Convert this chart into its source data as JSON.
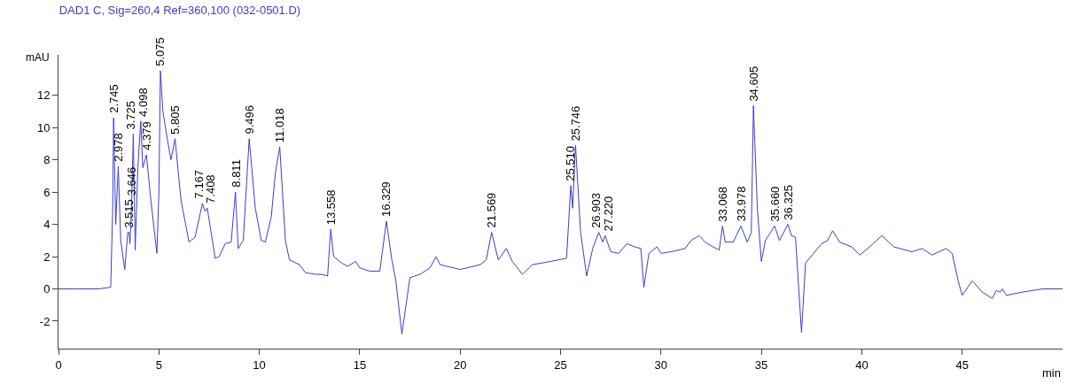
{
  "chart_data": {
    "type": "line",
    "title": "DAD1 C, Sig=260,4 Ref=360,100 (032-0501.D)",
    "xlabel": "min",
    "ylabel": "mAU",
    "xlim": [
      0,
      50
    ],
    "xticks": [
      0,
      5,
      10,
      15,
      20,
      25,
      30,
      35,
      40,
      45
    ],
    "ylim": [
      -3.7,
      14.5
    ],
    "yticks": [
      -2,
      0,
      2,
      4,
      6,
      8,
      10,
      12
    ],
    "marker": "none",
    "line_style": "solid",
    "series": [
      {
        "color": "#3c3cd0",
        "x": [
          0,
          1,
          2,
          2.6,
          2.7,
          2.745,
          2.85,
          2.978,
          3.1,
          3.3,
          3.45,
          3.515,
          3.56,
          3.646,
          3.725,
          3.82,
          3.95,
          4.098,
          4.2,
          4.379,
          4.6,
          4.9,
          5.0,
          5.075,
          5.2,
          5.35,
          5.6,
          5.805,
          6.1,
          6.5,
          6.8,
          7.167,
          7.3,
          7.408,
          7.6,
          7.8,
          8.0,
          8.3,
          8.6,
          8.811,
          8.95,
          9.2,
          9.496,
          9.8,
          10.1,
          10.3,
          10.6,
          10.8,
          11.018,
          11.3,
          11.5,
          12.0,
          12.3,
          12.8,
          13.1,
          13.4,
          13.558,
          13.7,
          14.1,
          14.4,
          14.8,
          15.0,
          15.5,
          16.0,
          16.329,
          16.6,
          16.8,
          17.1,
          17.5,
          18.0,
          18.5,
          18.8,
          19.0,
          20.0,
          21.0,
          21.3,
          21.569,
          21.9,
          22.3,
          22.6,
          23.1,
          23.6,
          24.5,
          25.3,
          25.51,
          25.6,
          25.746,
          26.0,
          26.3,
          26.6,
          26.903,
          27.1,
          27.22,
          27.5,
          27.9,
          28.3,
          28.7,
          29.0,
          29.15,
          29.4,
          29.8,
          30.0,
          30.5,
          31.2,
          31.5,
          31.9,
          32.2,
          32.6,
          32.9,
          33.068,
          33.2,
          33.6,
          33.978,
          34.3,
          34.5,
          34.605,
          34.8,
          35.0,
          35.2,
          35.66,
          35.9,
          36.325,
          36.5,
          36.7,
          37.0,
          37.2,
          37.6,
          38.0,
          38.3,
          38.55,
          38.9,
          39.5,
          39.9,
          40.3,
          41.0,
          41.6,
          42.5,
          43.0,
          43.5,
          44.2,
          44.5,
          44.8,
          45.0,
          45.5,
          46.0,
          46.5,
          46.7,
          46.9,
          47.0,
          47.2,
          48.0,
          49.0,
          50
        ],
        "values": [
          0,
          0,
          0,
          0.1,
          5,
          10.6,
          4,
          7.6,
          3,
          1.2,
          3.5,
          3.5,
          2.8,
          5.5,
          9.6,
          2.4,
          7.5,
          10.4,
          7.5,
          8.3,
          5.5,
          2.2,
          6,
          13.5,
          11,
          9.8,
          8,
          9.3,
          5.5,
          2.9,
          3.2,
          5.3,
          4.8,
          5,
          3.5,
          1.9,
          2,
          2.8,
          2.9,
          6,
          2.5,
          3,
          9.3,
          5,
          3,
          2.9,
          4.5,
          7.2,
          8.8,
          3,
          1.8,
          1.5,
          1,
          0.9,
          0.9,
          0.8,
          3.7,
          2,
          1.6,
          1.4,
          1.7,
          1.3,
          1.1,
          1.1,
          4.2,
          1.8,
          0.5,
          -2.8,
          0.7,
          0.9,
          1.3,
          2,
          1.5,
          1.2,
          1.5,
          1.8,
          3.5,
          1.8,
          2.5,
          1.7,
          0.9,
          1.5,
          1.7,
          1.9,
          6.4,
          5,
          8.9,
          3.5,
          0.8,
          2.5,
          3.5,
          2.9,
          3.3,
          2.3,
          2.2,
          2.8,
          2.6,
          2.5,
          0.1,
          2.2,
          2.6,
          2.2,
          2.3,
          2.5,
          3,
          3.3,
          2.9,
          2.6,
          2.4,
          3.9,
          2.9,
          2.9,
          3.9,
          2.9,
          3.5,
          11.35,
          5,
          1.7,
          3,
          3.9,
          3,
          4,
          3.3,
          3.2,
          -2.7,
          1.6,
          2.2,
          2.8,
          3,
          3.6,
          2.9,
          2.6,
          2.1,
          2.5,
          3.3,
          2.6,
          2.3,
          2.5,
          2.1,
          2.5,
          2.2,
          0.5,
          -0.4,
          0.5,
          -0.2,
          -0.6,
          -0.1,
          -0.2,
          0,
          -0.4,
          -0.2,
          0,
          0
        ]
      }
    ],
    "annotations": [
      {
        "text": "2.745",
        "x": 2.745,
        "y": 10.6
      },
      {
        "text": "2.978",
        "x": 2.978,
        "y": 7.6
      },
      {
        "text": "3.515",
        "x": 3.515,
        "y": 3.5
      },
      {
        "text": "3.646",
        "x": 3.646,
        "y": 5.5
      },
      {
        "text": "3.725",
        "x": 3.725,
        "y": 9.6
      },
      {
        "text": "4.098",
        "x": 4.098,
        "y": 10.4
      },
      {
        "text": "4.379",
        "x": 4.379,
        "y": 8.3
      },
      {
        "text": "5.075",
        "x": 5.075,
        "y": 13.5
      },
      {
        "text": "5.805",
        "x": 5.805,
        "y": 9.3
      },
      {
        "text": "7.167",
        "x": 7.167,
        "y": 5.3
      },
      {
        "text": "7.408",
        "x": 7.408,
        "y": 5
      },
      {
        "text": "8.811",
        "x": 8.811,
        "y": 6
      },
      {
        "text": "9.496",
        "x": 9.496,
        "y": 9.3
      },
      {
        "text": "11.018",
        "x": 11.018,
        "y": 8.8
      },
      {
        "text": "13.558",
        "x": 13.558,
        "y": 3.7
      },
      {
        "text": "16.329",
        "x": 16.329,
        "y": 4.2
      },
      {
        "text": "21.569",
        "x": 21.569,
        "y": 3.5
      },
      {
        "text": "25.510",
        "x": 25.51,
        "y": 6.4
      },
      {
        "text": "25.746",
        "x": 25.746,
        "y": 8.9
      },
      {
        "text": "26.903",
        "x": 26.903,
        "y": 3.5
      },
      {
        "text": "27.220",
        "x": 27.22,
        "y": 3.3
      },
      {
        "text": "33.068",
        "x": 33.068,
        "y": 3.9
      },
      {
        "text": "33.978",
        "x": 33.978,
        "y": 3.9
      },
      {
        "text": "34.605",
        "x": 34.605,
        "y": 11.35
      },
      {
        "text": "35.660",
        "x": 35.66,
        "y": 3.9
      },
      {
        "text": "36.325",
        "x": 36.325,
        "y": 4
      }
    ]
  }
}
